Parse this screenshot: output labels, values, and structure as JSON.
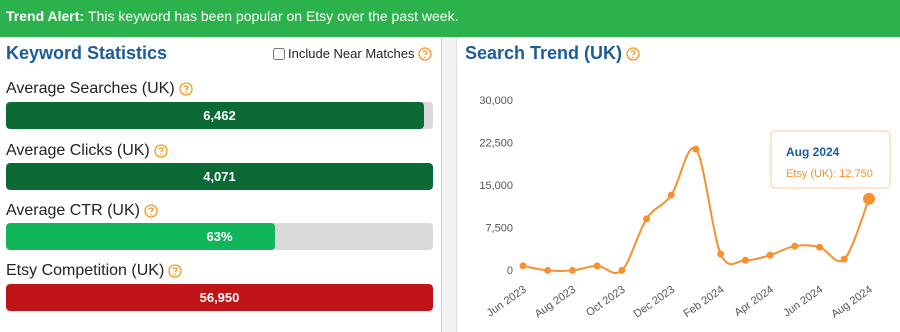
{
  "banner": {
    "label": "Trend Alert:",
    "text": "This keyword has been popular on Etsy over the past week."
  },
  "keyword_statistics": {
    "title": "Keyword Statistics",
    "checkbox_label": "Include Near Matches",
    "stats": [
      {
        "label": "Average Searches (UK)",
        "value": "6,462"
      },
      {
        "label": "Average Clicks (UK)",
        "value": "4,071"
      },
      {
        "label": "Average CTR (UK)",
        "value": "63%"
      },
      {
        "label": "Etsy Competition (UK)",
        "value": "56,950"
      }
    ]
  },
  "chart_data": {
    "type": "line",
    "title": "Search Trend (UK)",
    "categories": [
      "Jun 2023",
      null,
      "Aug 2023",
      null,
      "Oct 2023",
      null,
      "Dec 2023",
      null,
      "Feb 2024",
      null,
      "Apr 2024",
      null,
      "Jun 2024",
      null,
      "Aug 2024"
    ],
    "series": [
      {
        "name": "Etsy (UK)",
        "color": "#f7912f",
        "values": [
          900,
          100,
          100,
          900,
          100,
          9200,
          13400,
          21500,
          3000,
          1900,
          2800,
          4400,
          4200,
          2100,
          12750
        ],
        "value_labels": [
          null,
          null,
          null,
          null,
          null,
          null,
          null,
          null,
          null,
          null,
          null,
          null,
          null,
          null,
          "12,750"
        ]
      }
    ],
    "ylim": [
      0,
      30000
    ],
    "yticks": [
      0,
      {
        "value": 7500,
        "label": "7,500"
      },
      {
        "value": 15000,
        "label": "15,000"
      },
      {
        "value": 22500,
        "label": "22,500"
      },
      {
        "value": 30000,
        "label": "30,000"
      }
    ],
    "grid": false
  }
}
